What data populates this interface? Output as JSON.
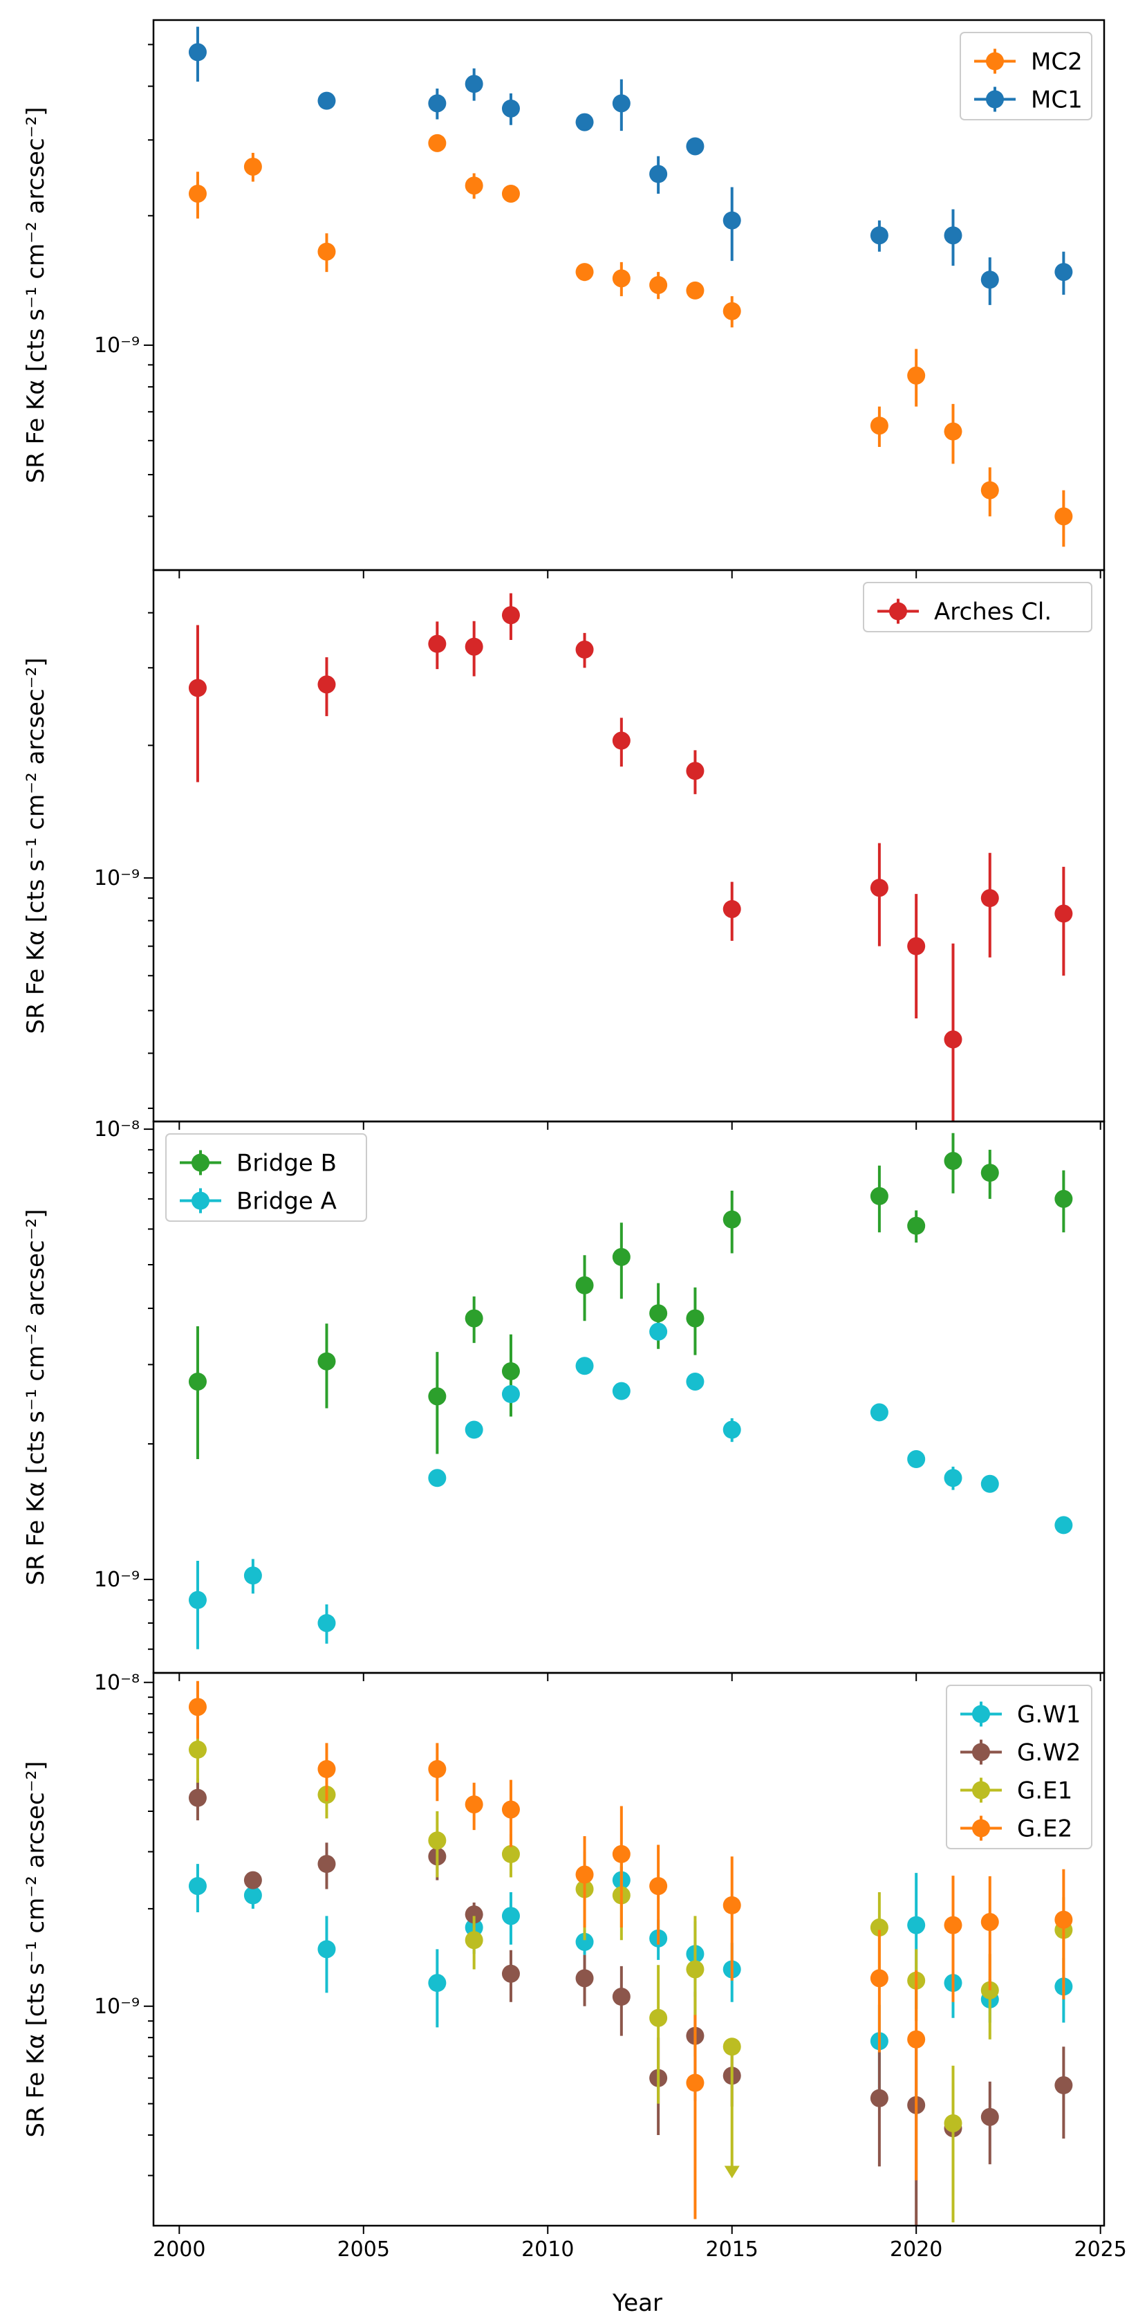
{
  "figure": {
    "xlabel": "Year",
    "x_ticks": [
      2000,
      2005,
      2010,
      2015,
      2020,
      2025
    ]
  },
  "colors": {
    "blue": "#1f77b4",
    "orange": "#ff7f0e",
    "red": "#d62728",
    "green": "#2ca02c",
    "cyan": "#17becf",
    "brown": "#8c564b",
    "olive": "#bcbd22"
  },
  "chart_data": [
    {
      "type": "scatter",
      "panel": 1,
      "ylabel": "SR Fe Kα [cts s⁻¹ cm⁻² arcsec⁻²]",
      "yscale": "log",
      "xlim": [
        1999.3,
        2025.1
      ],
      "ylim": [
        3e-10,
        5.7e-09
      ],
      "y_tick_labels": [
        "10⁻⁹"
      ],
      "y_ticks": [
        1e-09
      ],
      "legend_position": "top-right",
      "legend": [
        "MC2",
        "MC1"
      ],
      "series": [
        {
          "name": "MC2",
          "color": "orange",
          "x": [
            2000.5,
            2002,
            2004,
            2007,
            2008,
            2009,
            2011,
            2012,
            2013,
            2014,
            2015,
            2019,
            2020,
            2021,
            2022,
            2024
          ],
          "y": [
            2.25e-09,
            2.6e-09,
            1.65e-09,
            2.95e-09,
            2.35e-09,
            2.25e-09,
            1.48e-09,
            1.43e-09,
            1.38e-09,
            1.34e-09,
            1.2e-09,
            6.5e-10,
            8.5e-10,
            6.3e-10,
            4.6e-10,
            4e-10
          ],
          "yerr": [
            2.8e-10,
            2e-10,
            1.7e-10,
            1.3e-10,
            1.6e-10,
            1e-10,
            7e-11,
            1.3e-10,
            1e-10,
            6e-11,
            1e-10,
            7e-11,
            1.3e-10,
            1e-10,
            6e-11,
            6e-11
          ]
        },
        {
          "name": "MC1",
          "color": "blue",
          "x": [
            2000.5,
            2004,
            2007,
            2008,
            2009,
            2011,
            2012,
            2013,
            2014,
            2015,
            2019,
            2021,
            2022,
            2024
          ],
          "y": [
            4.8e-09,
            3.7e-09,
            3.65e-09,
            4.05e-09,
            3.55e-09,
            3.3e-09,
            3.65e-09,
            2.5e-09,
            2.9e-09,
            1.95e-09,
            1.8e-09,
            1.8e-09,
            1.42e-09,
            1.48e-09
          ],
          "yerr": [
            7e-10,
            1e-10,
            3e-10,
            3.5e-10,
            3e-10,
            1e-10,
            5e-10,
            2.5e-10,
            1e-10,
            3.8e-10,
            1.5e-10,
            2.7e-10,
            1.8e-10,
            1.7e-10
          ]
        }
      ]
    },
    {
      "type": "scatter",
      "panel": 2,
      "ylabel": "SR Fe Kα [cts s⁻¹ cm⁻² arcsec⁻²]",
      "yscale": "log",
      "xlim": [
        1999.3,
        2025.1
      ],
      "ylim": [
        2.8e-10,
        5e-09
      ],
      "y_tick_labels": [
        "10⁻⁹"
      ],
      "y_ticks": [
        1e-09
      ],
      "legend_position": "top-right",
      "legend": [
        "Arches Cl."
      ],
      "series": [
        {
          "name": "Arches Cl.",
          "color": "red",
          "x": [
            2000.5,
            2004,
            2007,
            2008,
            2009,
            2011,
            2012,
            2014,
            2015,
            2019,
            2020,
            2021,
            2022,
            2024
          ],
          "y": [
            2.7e-09,
            2.75e-09,
            3.4e-09,
            3.35e-09,
            3.95e-09,
            3.3e-09,
            2.05e-09,
            1.75e-09,
            8.5e-10,
            9.5e-10,
            7e-10,
            4.3e-10,
            9e-10,
            8.3e-10
          ],
          "yerr": [
            1.05e-09,
            4.2e-10,
            4.2e-10,
            4.8e-10,
            4.8e-10,
            3e-10,
            2.6e-10,
            2e-10,
            1.3e-10,
            2.5e-10,
            2.2e-10,
            2.8e-10,
            2.4e-10,
            2.3e-10
          ]
        }
      ]
    },
    {
      "type": "scatter",
      "panel": 3,
      "ylabel": "SR Fe Kα [cts s⁻¹ cm⁻² arcsec⁻²]",
      "yscale": "log",
      "xlim": [
        1999.3,
        2025.1
      ],
      "ylim": [
        6.2e-10,
        1.04e-08
      ],
      "y_tick_labels": [
        "10⁻⁹",
        "10⁻⁸"
      ],
      "y_ticks": [
        1e-09,
        1e-08
      ],
      "legend_position": "top-left",
      "legend": [
        "Bridge B",
        "Bridge A"
      ],
      "series": [
        {
          "name": "Bridge B",
          "color": "green",
          "x": [
            2000.5,
            2004,
            2007,
            2008,
            2009,
            2011,
            2012,
            2013,
            2014,
            2015,
            2019,
            2020,
            2021,
            2022,
            2024
          ],
          "y": [
            2.75e-09,
            3.05e-09,
            2.55e-09,
            3.8e-09,
            2.9e-09,
            4.5e-09,
            5.2e-09,
            3.9e-09,
            3.8e-09,
            6.3e-09,
            7.1e-09,
            6.1e-09,
            8.5e-09,
            8e-09,
            7e-09
          ],
          "yerr": [
            9e-10,
            6.5e-10,
            6.5e-10,
            4.5e-10,
            6e-10,
            7.5e-10,
            1e-09,
            6.5e-10,
            6.5e-10,
            1e-09,
            1.2e-09,
            5e-10,
            1.3e-09,
            1e-09,
            1.1e-09
          ]
        },
        {
          "name": "Bridge A",
          "color": "cyan",
          "x": [
            2000.5,
            2002,
            2004,
            2007,
            2008,
            2009,
            2011,
            2012,
            2013,
            2014,
            2015,
            2019,
            2020,
            2021,
            2022,
            2024
          ],
          "y": [
            9e-10,
            1.02e-09,
            8e-10,
            1.68e-09,
            2.15e-09,
            2.58e-09,
            2.98e-09,
            2.62e-09,
            3.55e-09,
            2.75e-09,
            2.15e-09,
            2.35e-09,
            1.85e-09,
            1.68e-09,
            1.63e-09,
            1.32e-09
          ],
          "yerr": [
            2e-10,
            9e-11,
            8e-11,
            3e-11,
            3e-11,
            3e-11,
            3e-11,
            3e-11,
            3e-11,
            3e-11,
            1.3e-10,
            3e-11,
            3e-11,
            1e-10,
            3e-11,
            3e-11
          ]
        }
      ]
    },
    {
      "type": "scatter",
      "panel": 4,
      "ylabel": "SR Fe Kα [cts s⁻¹ cm⁻² arcsec⁻²]",
      "xlabel": "Year",
      "yscale": "log",
      "xlim": [
        1999.3,
        2025.1
      ],
      "ylim": [
        2.1e-10,
        1.07e-08
      ],
      "y_tick_labels": [
        "10⁻⁹",
        "10⁻⁸"
      ],
      "y_ticks": [
        1e-09,
        1e-08
      ],
      "legend_position": "top-right",
      "legend": [
        "G.W1",
        "G.W2",
        "G.E1",
        "G.E2"
      ],
      "series": [
        {
          "name": "G.W1",
          "color": "cyan",
          "x": [
            2000.5,
            2002,
            2004,
            2007,
            2008,
            2009,
            2011,
            2012,
            2013,
            2014,
            2015,
            2019,
            2020,
            2021,
            2022,
            2024
          ],
          "y": [
            2.35e-09,
            2.2e-09,
            1.5e-09,
            1.18e-09,
            1.75e-09,
            1.9e-09,
            1.58e-09,
            2.45e-09,
            1.62e-09,
            1.45e-09,
            1.3e-09,
            7.8e-10,
            1.78e-09,
            1.18e-09,
            1.05e-09,
            1.15e-09
          ],
          "yerr": [
            4e-10,
            2e-10,
            4e-10,
            3.2e-10,
            3e-10,
            3.5e-10,
            1.4e-10,
            2.5e-10,
            2.3e-10,
            3.8e-10,
            2.7e-10,
            2.3e-10,
            8e-10,
            2.6e-10,
            1.6e-10,
            2.6e-10
          ]
        },
        {
          "name": "G.W2",
          "color": "brown",
          "x": [
            2000.5,
            2002,
            2004,
            2007,
            2008,
            2009,
            2011,
            2012,
            2013,
            2014,
            2015,
            2019,
            2020,
            2021,
            2022,
            2024
          ],
          "y": [
            4.4e-09,
            2.45e-09,
            2.75e-09,
            2.9e-09,
            1.92e-09,
            1.26e-09,
            1.22e-09,
            1.07e-09,
            6e-10,
            8.1e-10,
            6.1e-10,
            5.2e-10,
            4.95e-10,
            4.2e-10,
            4.55e-10,
            5.7e-10
          ],
          "yerr": [
            6.5e-10,
            1.5e-10,
            4.5e-10,
            4.5e-10,
            1.7e-10,
            2.3e-10,
            2.2e-10,
            2.6e-10,
            2e-10,
            3e-10,
            1.2e-10,
            2e-10,
            3.2e-10,
            1.6e-10,
            1.3e-10,
            1.8e-10
          ]
        },
        {
          "name": "G.E1",
          "color": "olive",
          "x": [
            2000.5,
            2004,
            2007,
            2008,
            2009,
            2011,
            2012,
            2013,
            2014,
            2015,
            2019,
            2020,
            2021,
            2022,
            2024
          ],
          "y": [
            6.2e-09,
            4.5e-09,
            3.25e-09,
            1.6e-09,
            2.95e-09,
            2.3e-09,
            2.2e-09,
            9.2e-10,
            1.3e-09,
            7.5e-10,
            1.75e-09,
            1.2e-09,
            4.35e-10,
            1.12e-09,
            1.72e-09
          ],
          "yerr": [
            1.3e-09,
            7e-10,
            7.5e-10,
            3e-10,
            4.5e-10,
            7e-10,
            6e-10,
            4.2e-10,
            6e-10,
            0,
            5e-10,
            3e-10,
            2.2e-10,
            3.3e-10,
            4.5e-10
          ],
          "upper_limit_x": [
            2015
          ]
        },
        {
          "name": "G.E2",
          "color": "orange",
          "x": [
            2000.5,
            2004,
            2007,
            2008,
            2009,
            2011,
            2012,
            2013,
            2014,
            2015,
            2019,
            2020,
            2021,
            2022,
            2024
          ],
          "y": [
            8.4e-09,
            5.4e-09,
            5.4e-09,
            4.2e-09,
            4.05e-09,
            2.55e-09,
            2.95e-09,
            2.35e-09,
            5.8e-10,
            2.05e-09,
            1.22e-09,
            7.9e-10,
            1.78e-09,
            1.82e-09,
            1.85e-09
          ],
          "yerr": [
            1.7e-09,
            1.1e-09,
            1.1e-09,
            7e-10,
            9.5e-10,
            8e-10,
            1.2e-09,
            8e-10,
            3.6e-10,
            8.5e-10,
            5e-10,
            5e-10,
            7.5e-10,
            7e-10,
            8e-10
          ]
        }
      ]
    }
  ]
}
